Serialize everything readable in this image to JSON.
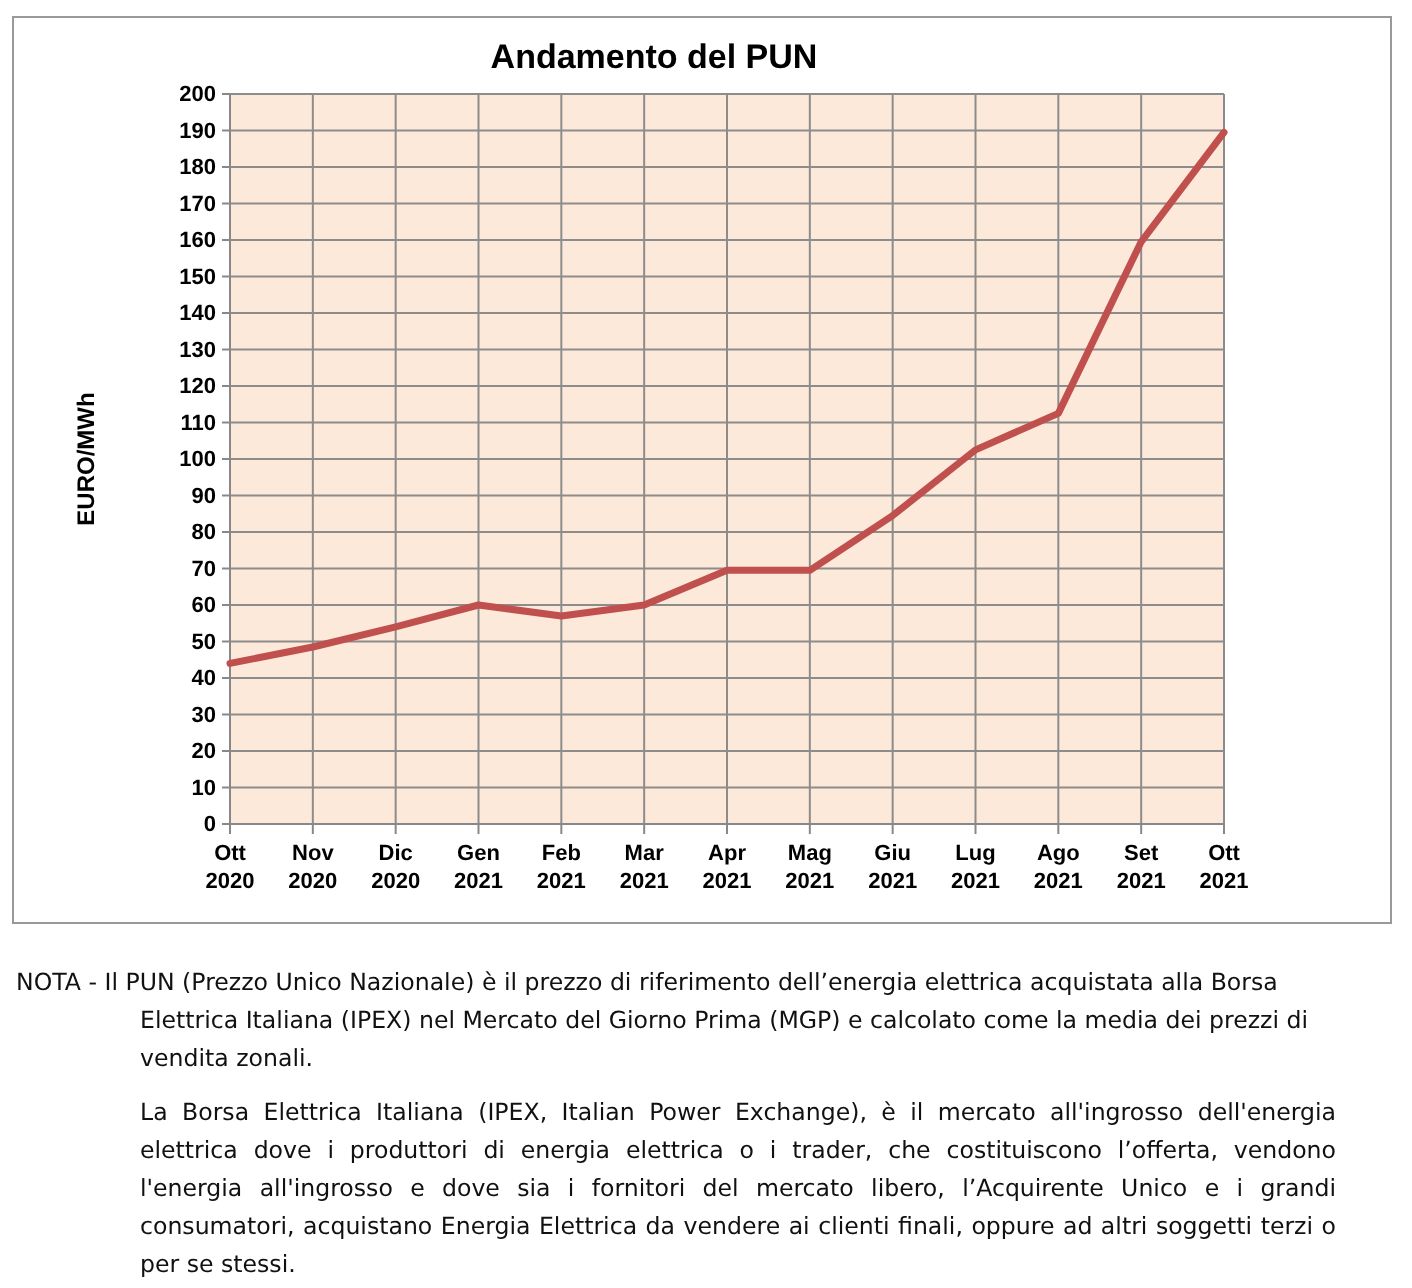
{
  "chart_data": {
    "type": "line",
    "title": "Andamento del PUN",
    "ylabel": "EURO/MWh",
    "categories": [
      "Ott 2020",
      "Nov 2020",
      "Dic 2020",
      "Gen 2021",
      "Feb 2021",
      "Mar 2021",
      "Apr 2021",
      "Mag 2021",
      "Giu 2021",
      "Lug 2021",
      "Ago 2021",
      "Set 2021",
      "Ott 2021"
    ],
    "series": [
      {
        "color": "#c0504d",
        "values": [
          44,
          48.5,
          54,
          60,
          57,
          60,
          69.5,
          69.5,
          84.5,
          102.5,
          112.5,
          159.5,
          189.5
        ]
      }
    ],
    "ylim": [
      0,
      200
    ],
    "yticks": [
      0,
      10,
      20,
      30,
      40,
      50,
      60,
      70,
      80,
      90,
      100,
      110,
      120,
      130,
      140,
      150,
      160,
      170,
      180,
      190,
      200
    ],
    "grid": true,
    "marker": "none",
    "line_style": "solid",
    "annotations": [
      "NOTA - Il PUN (Prezzo Unico Nazionale) è il prezzo di riferimento dell’energia elettrica acquistata alla Borsa Elettrica Italiana (IPEX) nel Mercato del Giorno Prima (MGP) e calcolato come la media dei prezzi di vendita zonali.",
      "La Borsa Elettrica Italiana (IPEX, Italian Power Exchange), è il mercato all'ingrosso dell'energia elettrica dove i produttori di energia elettrica o i trader, che costituiscono l’offerta, vendono l'energia all'ingrosso e dove sia i fornitori del mercato libero, l’Acquirente Unico e i grandi consumatori, acquistano Energia Elettrica da vendere ai clienti finali, oppure ad altri soggetti terzi o per se stessi."
    ]
  }
}
